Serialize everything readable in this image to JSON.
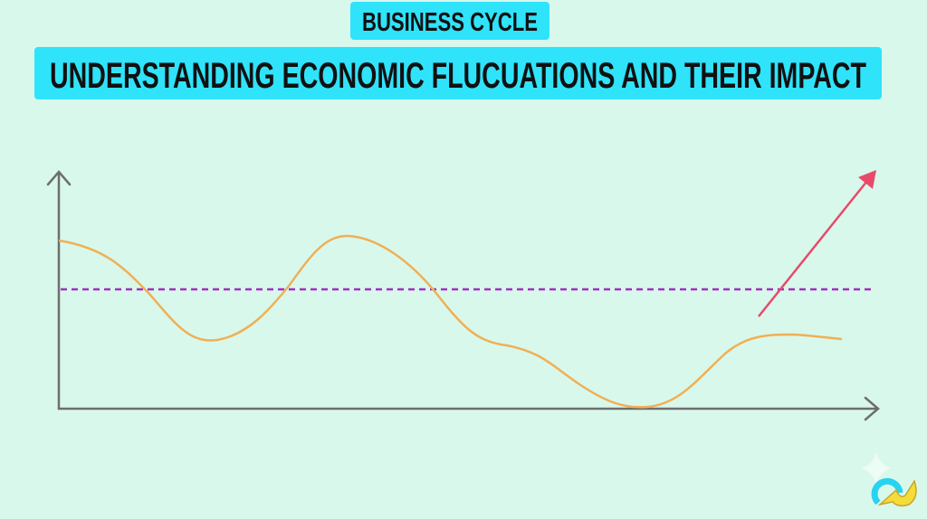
{
  "header": {
    "tag": "BUSINESS CYCLE",
    "title": "UNDERSTANDING ECONOMIC FLUCUATIONS AND THEIR IMPACT"
  },
  "colors": {
    "background": "#d9f8ec",
    "title_box": "#2fe3fb",
    "cycle_curve": "#f0b054",
    "trend_line": "#a32ec4",
    "growth_arrow": "#e84a6a",
    "axes": "#6e6e6e"
  },
  "icons": [
    "sparkle-icon",
    "logo-icon"
  ]
}
